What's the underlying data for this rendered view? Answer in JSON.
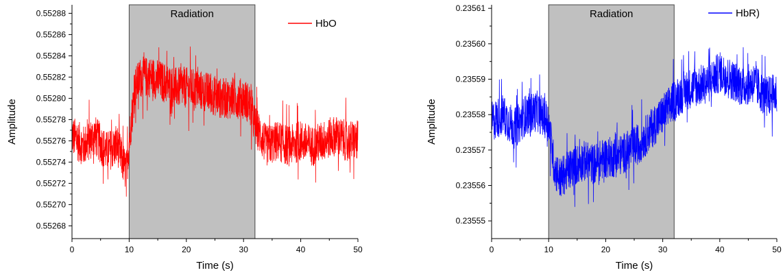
{
  "chart_data": [
    {
      "type": "line",
      "xlabel": "Time (s)",
      "ylabel": "Amplitude",
      "xlim": [
        0,
        50
      ],
      "ylim": [
        0.552668,
        0.552888
      ],
      "x_ticks": [
        "0",
        "10",
        "20",
        "30",
        "40",
        "50"
      ],
      "x_tick_values": [
        0,
        10,
        20,
        30,
        40,
        50
      ],
      "y_ticks": [
        "0.55268",
        "0.55270",
        "0.55272",
        "0.55274",
        "0.55276",
        "0.55278",
        "0.55280",
        "0.55282",
        "0.55284",
        "0.55286",
        "0.55288"
      ],
      "y_tick_values": [
        0.55268,
        0.5527,
        0.55272,
        0.55274,
        0.55276,
        0.55278,
        0.5528,
        0.55282,
        0.55284,
        0.55286,
        0.55288
      ],
      "shaded_region": {
        "label": "Radiation",
        "x_start": 10,
        "x_end": 32,
        "color": "#c0c0c0"
      },
      "legend": "top-right",
      "series": [
        {
          "name": "HbO",
          "color": "#ff0000",
          "x": [
            0,
            2,
            4,
            6,
            8,
            9.5,
            10,
            11,
            12,
            14,
            16,
            18,
            20,
            22,
            24,
            26,
            28,
            30,
            31,
            32,
            33,
            34,
            36,
            38,
            40,
            42,
            44,
            46,
            48,
            50
          ],
          "y": [
            0.552765,
            0.552755,
            0.552765,
            0.55275,
            0.552755,
            0.55273,
            0.55276,
            0.55281,
            0.55282,
            0.55282,
            0.552815,
            0.55281,
            0.55281,
            0.552808,
            0.552805,
            0.5528,
            0.5528,
            0.5528,
            0.552795,
            0.552775,
            0.552765,
            0.552755,
            0.55276,
            0.552755,
            0.55276,
            0.552755,
            0.55276,
            0.552765,
            0.55276,
            0.55276
          ]
        }
      ]
    },
    {
      "type": "line",
      "xlabel": "Time (s)",
      "ylabel": "Amplitude",
      "xlim": [
        0,
        50
      ],
      "ylim": [
        0.235545,
        0.235611
      ],
      "x_ticks": [
        "0",
        "10",
        "20",
        "30",
        "40",
        "50"
      ],
      "x_tick_values": [
        0,
        10,
        20,
        30,
        40,
        50
      ],
      "y_ticks": [
        "0.23555",
        "0.23556",
        "0.23557",
        "0.23558",
        "0.23559",
        "0.23560",
        "0.23561"
      ],
      "y_tick_values": [
        0.23555,
        0.23556,
        0.23557,
        0.23558,
        0.23559,
        0.2356,
        0.23561
      ],
      "shaded_region": {
        "label": "Radiation",
        "x_start": 10,
        "x_end": 32,
        "color": "#c0c0c0"
      },
      "legend": "top-right",
      "series": [
        {
          "name": "HbR)",
          "color": "#0000ff",
          "x": [
            0,
            2,
            4,
            6,
            8,
            10,
            11,
            12,
            14,
            16,
            18,
            20,
            22,
            24,
            26,
            28,
            30,
            32,
            34,
            36,
            38,
            40,
            42,
            44,
            46,
            48,
            50
          ],
          "y": [
            0.235578,
            0.23558,
            0.235576,
            0.23558,
            0.235581,
            0.235578,
            0.235565,
            0.235562,
            0.235565,
            0.235567,
            0.235566,
            0.235568,
            0.235568,
            0.23557,
            0.235572,
            0.235576,
            0.23558,
            0.235584,
            0.235587,
            0.235588,
            0.235589,
            0.235592,
            0.23559,
            0.235588,
            0.235589,
            0.235585,
            0.235586
          ]
        }
      ]
    }
  ]
}
